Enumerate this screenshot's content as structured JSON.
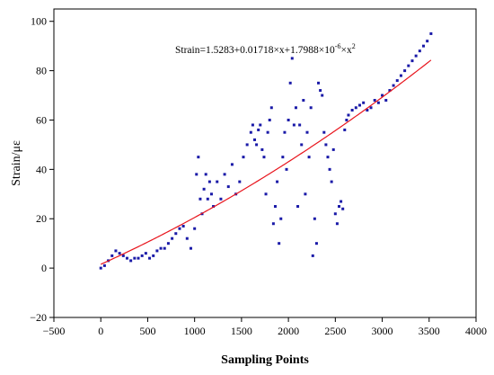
{
  "chart_data": {
    "type": "scatter",
    "title": "",
    "xlabel": "Sampling Points",
    "ylabel": "Strain/με",
    "xlim": [
      -500,
      4000
    ],
    "ylim": [
      -20,
      105
    ],
    "x_ticks": [
      "−500",
      "0",
      "500",
      "1000",
      "1500",
      "2000",
      "2500",
      "3000",
      "3500",
      "4000"
    ],
    "y_ticks": [
      "−20",
      "0",
      "20",
      "40",
      "60",
      "80",
      "100"
    ],
    "grid": false,
    "legend": "none",
    "colors": {
      "points": "#1a1aa8",
      "fit": "#e8141c",
      "axis": "#000000"
    },
    "annotation": {
      "text_parts": {
        "a": "Strain=1.5283+0.01718×x+1.7988×10",
        "exp1": "-6",
        "b": "×x",
        "exp2": "2"
      }
    },
    "fit": {
      "intercept": 1.5283,
      "linear": 0.01718,
      "quadratic": 1.7988e-06,
      "x_range": [
        0,
        3520
      ]
    },
    "series": [
      {
        "x": [
          0,
          40,
          80,
          120,
          160,
          200,
          240,
          280,
          320,
          360,
          400,
          440,
          480,
          520,
          560,
          600,
          640,
          680,
          720,
          760,
          800,
          840,
          880,
          920,
          960,
          1000,
          1020,
          1040,
          1060,
          1080,
          1100,
          1120,
          1140,
          1160,
          1180,
          1200,
          1240,
          1280,
          1320,
          1360,
          1400,
          1440,
          1480,
          1520,
          1560,
          1600,
          1620,
          1640,
          1660,
          1680,
          1700,
          1720,
          1740,
          1760,
          1780,
          1800,
          1820,
          1840,
          1860,
          1880,
          1900,
          1920,
          1940,
          1960,
          1980,
          2000,
          2020,
          2040,
          2060,
          2080,
          2100,
          2120,
          2140,
          2160,
          2180,
          2200,
          2220,
          2240,
          2260,
          2280,
          2300,
          2320,
          2340,
          2360,
          2380,
          2400,
          2420,
          2440,
          2460,
          2480,
          2500,
          2520,
          2540,
          2560,
          2580,
          2600,
          2620,
          2640,
          2680,
          2720,
          2760,
          2800,
          2840,
          2880,
          2920,
          2960,
          3000,
          3040,
          3080,
          3120,
          3160,
          3200,
          3240,
          3280,
          3320,
          3360,
          3400,
          3440,
          3480,
          3520
        ],
        "y": [
          0,
          1,
          3,
          5,
          7,
          6,
          5,
          4,
          3,
          4,
          4,
          5,
          6,
          4,
          5,
          7,
          8,
          8,
          10,
          12,
          14,
          16,
          17,
          12,
          8,
          16,
          38,
          45,
          28,
          22,
          32,
          38,
          28,
          35,
          30,
          25,
          35,
          28,
          38,
          33,
          42,
          30,
          35,
          45,
          50,
          55,
          58,
          52,
          50,
          56,
          58,
          48,
          45,
          30,
          55,
          60,
          65,
          18,
          25,
          35,
          10,
          20,
          45,
          55,
          40,
          60,
          75,
          85,
          58,
          65,
          25,
          58,
          50,
          68,
          30,
          55,
          45,
          65,
          5,
          20,
          10,
          75,
          72,
          70,
          55,
          50,
          45,
          40,
          35,
          48,
          22,
          18,
          25,
          27,
          24,
          56,
          60,
          62,
          64,
          65,
          66,
          67,
          64,
          65,
          68,
          67,
          70,
          68,
          72,
          74,
          76,
          78,
          80,
          82,
          84,
          86,
          88,
          90,
          92,
          95
        ]
      }
    ]
  }
}
